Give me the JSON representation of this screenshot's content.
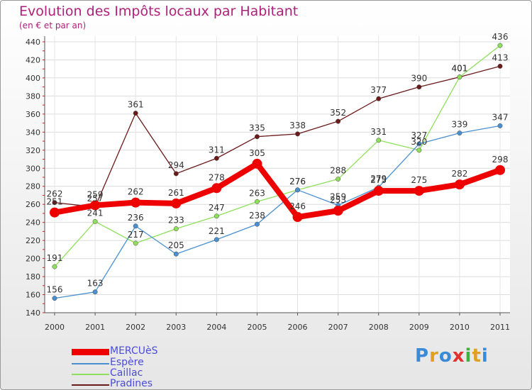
{
  "header": {
    "title": "Evolution des Impôts locaux par Habitant",
    "subtitle": "(en € et par an)"
  },
  "chart_data": {
    "type": "line",
    "title": "Evolution des Impôts locaux par Habitant",
    "subtitle": "(en € et par an)",
    "xlabel": "",
    "ylabel": "",
    "x": [
      "2000",
      "2001",
      "2002",
      "2003",
      "2004",
      "2005",
      "2006",
      "2007",
      "2008",
      "2009",
      "2010",
      "2011"
    ],
    "ylim": [
      140,
      440
    ],
    "yticks": [
      140,
      160,
      180,
      200,
      220,
      240,
      260,
      280,
      300,
      320,
      340,
      360,
      380,
      400,
      420,
      440
    ],
    "grid": true,
    "legend_position": "bottom-left",
    "series": [
      {
        "name": "Pradines",
        "color": "#6b1a1a",
        "values": [
          262,
          257,
          361,
          294,
          311,
          335,
          338,
          352,
          377,
          390,
          401,
          413
        ]
      },
      {
        "name": "Caillac",
        "color": "#8ee05a",
        "values": [
          191,
          241,
          217,
          233,
          247,
          263,
          276,
          288,
          331,
          320,
          401,
          436
        ]
      },
      {
        "name": "Espère",
        "color": "#4a90d0",
        "values": [
          156,
          163,
          236,
          205,
          221,
          238,
          276,
          259,
          279,
          327,
          339,
          347
        ]
      },
      {
        "name": "MERCUèS",
        "color": "#ee0000",
        "values": [
          251,
          259,
          262,
          261,
          278,
          305,
          246,
          253,
          275,
          275,
          282,
          298
        ]
      }
    ]
  },
  "legend": {
    "items": [
      {
        "label": "MERCUèS",
        "color": "#ee0000"
      },
      {
        "label": "Espère",
        "color": "#4a90d0"
      },
      {
        "label": "Caillac",
        "color": "#8ee05a"
      },
      {
        "label": "Pradines",
        "color": "#6b1a1a"
      }
    ]
  },
  "logo": {
    "letters": [
      {
        "char": "P",
        "color": "#3a8ad8"
      },
      {
        "char": "r",
        "color": "#e0a020"
      },
      {
        "char": "o",
        "color": "#3a8ad8"
      },
      {
        "char": "x",
        "color": "#e03030"
      },
      {
        "char": "i",
        "color": "#40b040"
      },
      {
        "char": "t",
        "color": "#e0a020"
      },
      {
        "char": "i",
        "color": "#3a8ad8"
      }
    ]
  }
}
